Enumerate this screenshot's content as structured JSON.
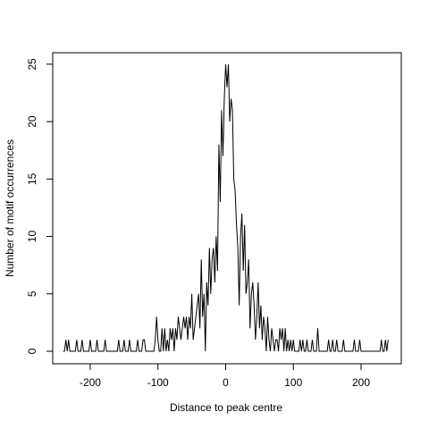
{
  "chart_data": {
    "type": "line",
    "xlabel": "Distance to peak centre",
    "ylabel": "Number of motif occurrences",
    "color": "#000000",
    "xlim": [
      -255.4,
      259.4
    ],
    "ylim": [
      -1.09,
      26.0
    ],
    "xticks": [
      -200,
      -100,
      0,
      100,
      200
    ],
    "yticks": [
      0,
      5,
      10,
      15,
      20,
      25
    ],
    "x": [
      -240,
      -238,
      -236,
      -234,
      -232,
      -230,
      -228,
      -226,
      -224,
      -222,
      -220,
      -218,
      -216,
      -214,
      -212,
      -210,
      -208,
      -206,
      -204,
      -202,
      -200,
      -198,
      -196,
      -194,
      -192,
      -190,
      -188,
      -186,
      -184,
      -182,
      -180,
      -178,
      -176,
      -174,
      -172,
      -170,
      -168,
      -166,
      -164,
      -162,
      -160,
      -158,
      -156,
      -154,
      -152,
      -150,
      -148,
      -146,
      -144,
      -142,
      -140,
      -138,
      -136,
      -134,
      -132,
      -130,
      -128,
      -126,
      -124,
      -122,
      -120,
      -118,
      -116,
      -114,
      -112,
      -110,
      -108,
      -106,
      -104,
      -102,
      -100,
      -98,
      -96,
      -94,
      -92,
      -90,
      -88,
      -86,
      -84,
      -82,
      -80,
      -78,
      -76,
      -74,
      -72,
      -70,
      -68,
      -66,
      -64,
      -62,
      -60,
      -58,
      -56,
      -54,
      -52,
      -50,
      -48,
      -46,
      -44,
      -42,
      -40,
      -38,
      -36,
      -34,
      -32,
      -30,
      -28,
      -26,
      -24,
      -22,
      -20,
      -18,
      -16,
      -14,
      -12,
      -10,
      -8,
      -6,
      -4,
      -2,
      0,
      2,
      4,
      6,
      8,
      10,
      12,
      14,
      16,
      18,
      20,
      22,
      24,
      26,
      28,
      30,
      32,
      34,
      36,
      38,
      40,
      42,
      44,
      46,
      48,
      50,
      52,
      54,
      56,
      58,
      60,
      62,
      64,
      66,
      68,
      70,
      72,
      74,
      76,
      78,
      80,
      82,
      84,
      86,
      88,
      90,
      92,
      94,
      96,
      98,
      100,
      102,
      104,
      106,
      108,
      110,
      112,
      114,
      116,
      118,
      120,
      122,
      124,
      126,
      128,
      130,
      132,
      134,
      136,
      138,
      140,
      142,
      144,
      146,
      148,
      150,
      152,
      154,
      156,
      158,
      160,
      162,
      164,
      166,
      168,
      170,
      172,
      174,
      176,
      178,
      180,
      182,
      184,
      186,
      188,
      190,
      192,
      194,
      196,
      198,
      200,
      202,
      204,
      206,
      208,
      210,
      212,
      214,
      216,
      218,
      220,
      222,
      224,
      226,
      228,
      230,
      232,
      234,
      236,
      238,
      240
    ],
    "values": [
      0,
      0,
      1,
      0,
      1,
      0,
      0,
      0,
      0,
      0,
      1,
      0,
      0,
      0,
      1,
      0,
      0,
      0,
      0,
      0,
      1,
      0,
      0,
      0,
      0,
      1,
      0,
      0,
      0,
      0,
      0,
      1,
      0,
      0,
      0,
      0,
      0,
      0,
      0,
      0,
      0,
      1,
      0,
      0,
      0,
      1,
      0,
      0,
      0,
      1,
      0,
      0,
      0,
      0,
      0,
      1,
      0,
      0,
      0,
      1,
      1,
      0,
      0,
      0,
      0,
      0,
      0,
      0,
      1,
      3,
      1,
      0,
      0,
      2,
      0,
      2,
      0,
      1,
      0,
      2,
      1,
      2,
      0,
      2,
      1,
      3,
      2,
      1,
      2,
      3,
      2,
      3,
      1,
      3,
      2,
      5,
      1,
      2,
      3,
      4,
      5,
      2,
      8,
      3,
      5,
      0,
      6,
      4,
      9,
      5,
      8,
      9,
      6,
      10,
      7,
      18,
      13,
      21,
      17,
      22,
      25,
      23,
      25,
      20,
      22,
      21,
      15,
      14,
      11,
      9,
      4,
      10,
      12,
      7,
      11,
      5,
      6,
      8,
      2,
      5,
      6,
      4,
      1,
      3,
      6,
      2,
      4,
      1,
      3,
      2,
      0,
      3,
      1,
      0,
      2,
      1,
      0,
      1,
      1,
      0,
      2,
      1,
      2,
      0,
      2,
      0,
      1,
      0,
      1,
      0,
      1,
      0,
      0,
      0,
      0,
      1,
      0,
      1,
      0,
      0,
      1,
      0,
      0,
      0,
      1,
      0,
      0,
      0,
      2,
      0,
      0,
      0,
      0,
      0,
      0,
      0,
      1,
      0,
      0,
      1,
      0,
      0,
      1,
      0,
      0,
      0,
      0,
      1,
      0,
      0,
      0,
      0,
      0,
      0,
      0,
      1,
      0,
      0,
      0,
      1,
      0,
      0,
      0,
      0,
      0,
      0,
      0,
      0,
      0,
      0,
      0,
      0,
      0,
      0,
      0,
      1,
      0,
      0,
      1,
      0,
      1
    ]
  }
}
